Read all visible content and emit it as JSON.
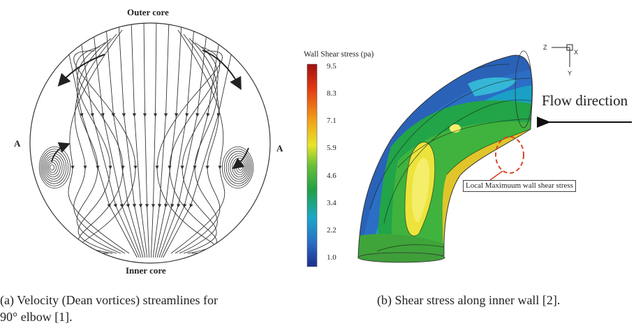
{
  "panel_a": {
    "label_top": "Outer core",
    "label_bottom": "Inner core",
    "label_left": "A",
    "label_right": "A",
    "caption_line1": "(a) Velocity (Dean vortices) streamlines for",
    "caption_line2": "90° elbow [1]."
  },
  "panel_b": {
    "colorbar_title": "Wall Shear stress (pa)",
    "colorbar_ticks": [
      "9.5",
      "8.3",
      "7.1",
      "5.9",
      "4.6",
      "3.4",
      "2.2",
      "1.0"
    ],
    "flow_label": "Flow direction",
    "annotation": "Local Maximuum wall shear stress",
    "axis_z": "Z",
    "axis_x": "X",
    "axis_y": "Y",
    "caption": "(b) Shear stress along inner wall [2]."
  },
  "colors": {
    "stroke": "#333333",
    "annotation_red": "#d8432a",
    "colormap": [
      "#a01010",
      "#e23a12",
      "#f1a21a",
      "#e8e52a",
      "#68c038",
      "#21a045",
      "#1aa7c9",
      "#2b6ec5",
      "#1b2f8e"
    ]
  }
}
